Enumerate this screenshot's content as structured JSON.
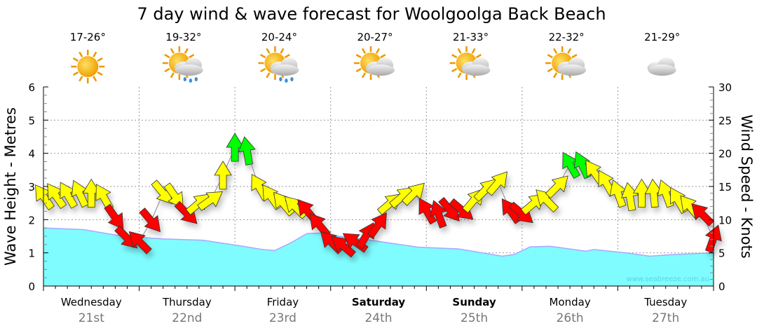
{
  "chart_data": {
    "type": "area+wind-arrows",
    "title": "7 day wind & wave forecast for Woolgoolga Back Beach",
    "ylabel_left": "Wave Height - Metres",
    "ylabel_right": "Wind Speed - Knots",
    "ylim_left": [
      0,
      6
    ],
    "ylim_right": [
      0,
      30
    ],
    "yticks_left": [
      "0",
      "1",
      "2",
      "3",
      "4",
      "5",
      "6"
    ],
    "yticks_right": [
      "0",
      "5",
      "10",
      "15",
      "20",
      "25",
      "30"
    ],
    "grid": true,
    "watermark": "www.seabreeze.com.au",
    "days": [
      {
        "name": "Wednesday",
        "date": "21st",
        "bold": false,
        "temp": "17-26°",
        "weather": "sunny"
      },
      {
        "name": "Thursday",
        "date": "22nd",
        "bold": false,
        "temp": "19-32°",
        "weather": "sun-cloud-rain"
      },
      {
        "name": "Friday",
        "date": "23rd",
        "bold": false,
        "temp": "20-24°",
        "weather": "sun-cloud-rain"
      },
      {
        "name": "Saturday",
        "date": "24th",
        "bold": true,
        "temp": "20-27°",
        "weather": "partly-cloudy"
      },
      {
        "name": "Sunday",
        "date": "25th",
        "bold": true,
        "temp": "21-33°",
        "weather": "partly-cloudy"
      },
      {
        "name": "Monday",
        "date": "26th",
        "bold": false,
        "temp": "22-32°",
        "weather": "partly-cloudy"
      },
      {
        "name": "Tuesday",
        "date": "27th",
        "bold": false,
        "temp": "21-29°",
        "weather": "cloudy"
      }
    ],
    "wave_height": {
      "hours": [
        0,
        10,
        20,
        30,
        40,
        50,
        55,
        58,
        62,
        66,
        70,
        74,
        82,
        94,
        104,
        110,
        115,
        118,
        122,
        127,
        136,
        138,
        146,
        152,
        158,
        168
      ],
      "metres": [
        1.75,
        1.7,
        1.5,
        1.42,
        1.38,
        1.2,
        1.1,
        1.07,
        1.3,
        1.58,
        1.6,
        1.5,
        1.38,
        1.17,
        1.12,
        1.0,
        0.9,
        0.95,
        1.18,
        1.2,
        1.05,
        1.1,
        1.0,
        0.9,
        0.95,
        1.0
      ]
    },
    "wind": {
      "hours": [
        0,
        3,
        6,
        9,
        12,
        15,
        18,
        21,
        24,
        27,
        30,
        33,
        36,
        39,
        42,
        45,
        48,
        51,
        54,
        57,
        60,
        63,
        66,
        69,
        72,
        75,
        78,
        81,
        84,
        87,
        90,
        93,
        96,
        99,
        102,
        105,
        108,
        111,
        114,
        117,
        120,
        123,
        126,
        129,
        132,
        135,
        138,
        141,
        144,
        147,
        150,
        153,
        156,
        159,
        162,
        165,
        168
      ],
      "knots": [
        13.5,
        13.7,
        13.8,
        14,
        14,
        13.5,
        10.3,
        7.2,
        6.7,
        9.8,
        14,
        13.5,
        10.9,
        12.5,
        13,
        16.7,
        20.9,
        20.4,
        15,
        13.5,
        12.5,
        12,
        11.4,
        9.3,
        6.7,
        6.1,
        6.7,
        7.7,
        9.3,
        12.5,
        13.5,
        14,
        11.4,
        10.9,
        11.4,
        11.4,
        13,
        14.6,
        15.6,
        11.4,
        10.9,
        12.5,
        13,
        15.1,
        18.3,
        18.3,
        17.2,
        15.6,
        14,
        13.5,
        14,
        14,
        14,
        13,
        12,
        10.9,
        7.2
      ],
      "direction_deg": [
        -35,
        -35,
        -30,
        -25,
        0,
        -30,
        145,
        135,
        -45,
        140,
        140,
        145,
        135,
        50,
        55,
        0,
        0,
        -10,
        -30,
        -35,
        -40,
        -45,
        -40,
        -40,
        -45,
        -50,
        -55,
        30,
        35,
        50,
        50,
        45,
        -30,
        -20,
        140,
        130,
        40,
        45,
        40,
        -35,
        130,
        50,
        -45,
        45,
        -30,
        -25,
        -35,
        -30,
        -20,
        -10,
        0,
        -5,
        -20,
        -30,
        -40,
        -45,
        20
      ],
      "color": [
        "y",
        "y",
        "y",
        "y",
        "y",
        "y",
        "r",
        "r",
        "r",
        "r",
        "y",
        "y",
        "r",
        "y",
        "y",
        "y",
        "g",
        "g",
        "y",
        "y",
        "y",
        "y",
        "r",
        "r",
        "r",
        "r",
        "r",
        "r",
        "r",
        "y",
        "y",
        "y",
        "r",
        "r",
        "r",
        "r",
        "y",
        "y",
        "y",
        "r",
        "r",
        "y",
        "y",
        "y",
        "g",
        "g",
        "y",
        "y",
        "y",
        "y",
        "y",
        "y",
        "y",
        "y",
        "y",
        "r",
        "r"
      ]
    },
    "colors": {
      "wave": "#7ffcff",
      "wave_line": "#a8a8ff",
      "yellow": "#ffff00",
      "red": "#ff0000",
      "green": "#00ff00"
    }
  }
}
